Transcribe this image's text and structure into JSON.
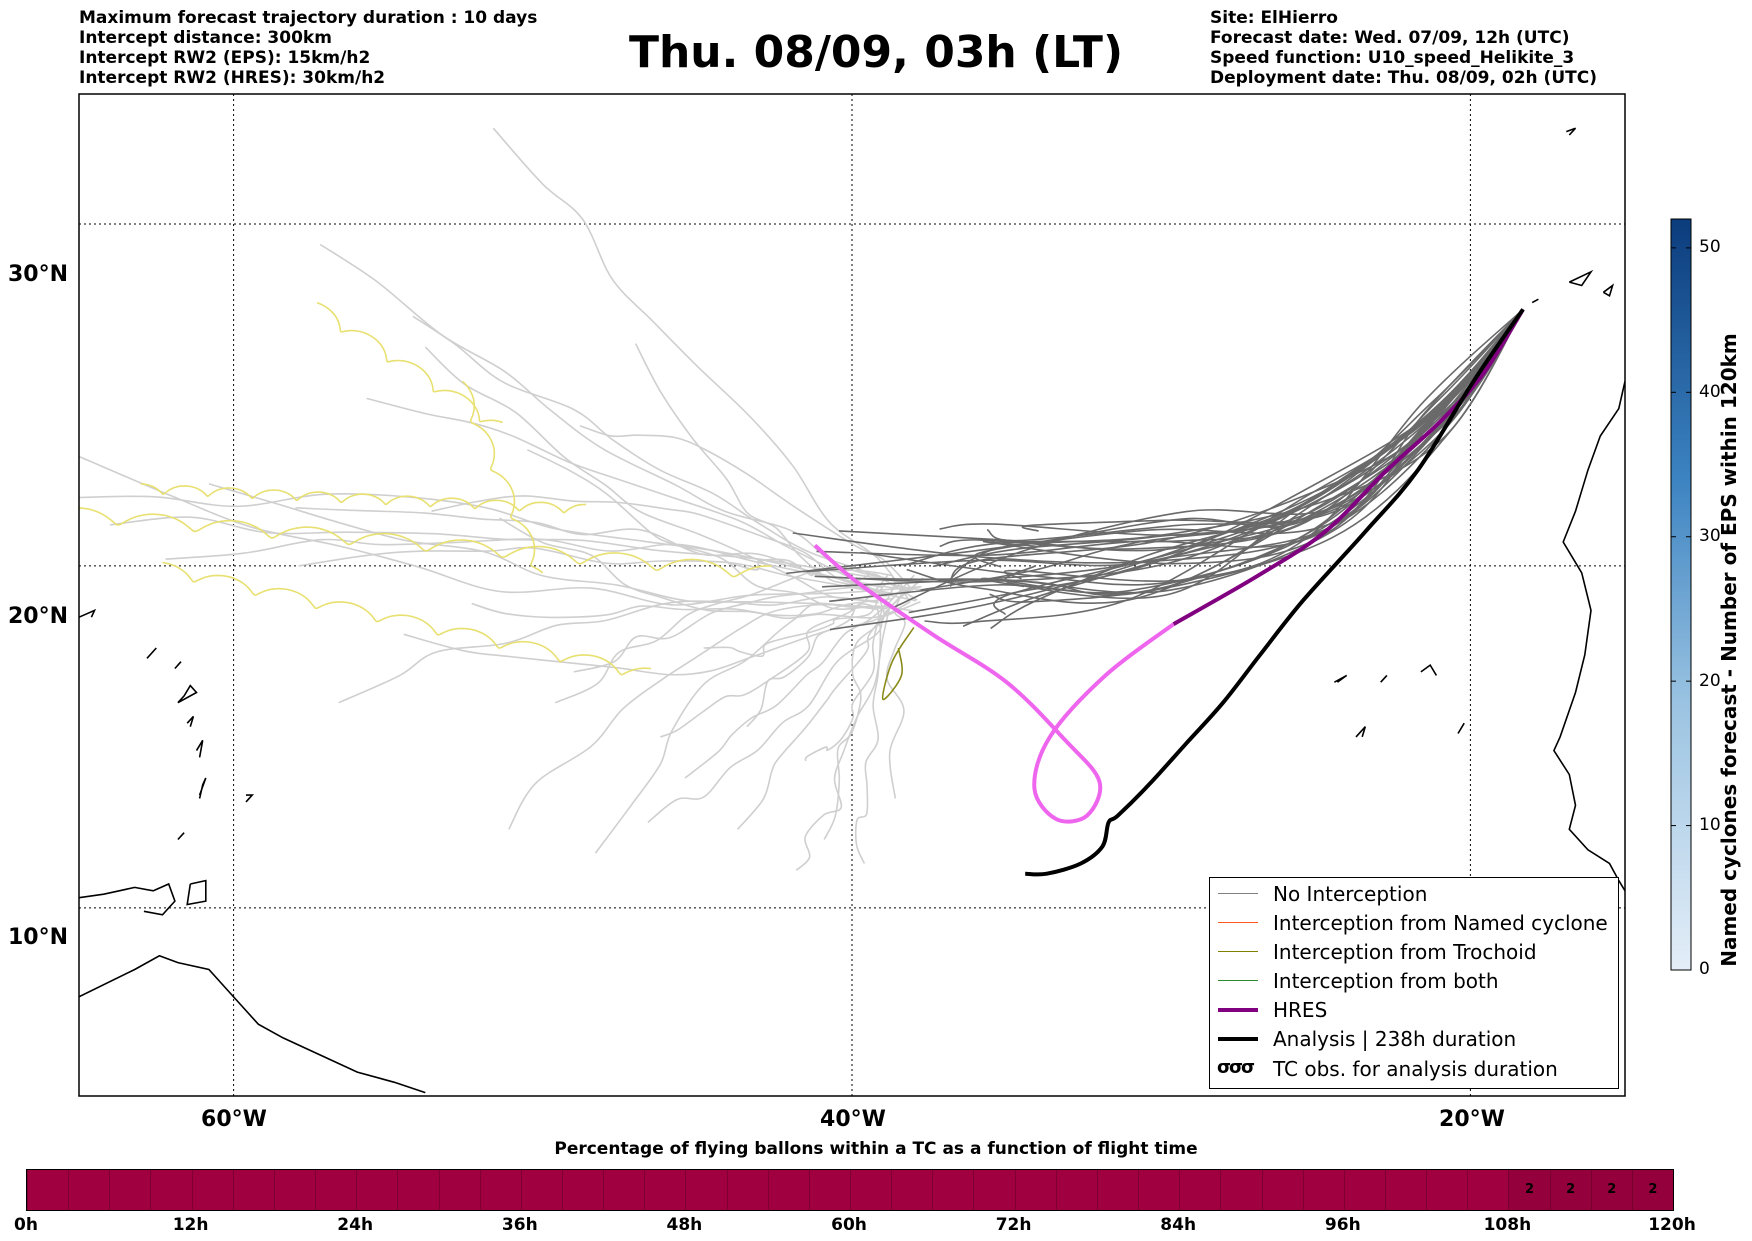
{
  "header_left": [
    "Maximum forecast trajectory duration : 10 days",
    "Intercept distance: 300km",
    "Intercept RW2 (EPS):  15km/h2",
    "Intercept RW2 (HRES): 30km/h2"
  ],
  "title": "Thu. 08/09, 03h (LT)",
  "header_right": [
    "Site: ElHierro",
    "Forecast date: Wed. 07/09, 12h (UTC)",
    "Speed function: U10_speed_Helikite_3",
    "Deployment date: Thu. 08/09, 02h (UTC)"
  ],
  "map": {
    "lat_labels": [
      "30°N",
      "20°N",
      "10°N"
    ],
    "lon_labels": [
      "60°W",
      "40°W",
      "20°W"
    ],
    "lon_range": [
      -65,
      -15
    ],
    "lat_range": [
      4.5,
      33.8
    ],
    "grid_lons": [
      -60,
      -40,
      -20
    ],
    "grid_lats": [
      30,
      20,
      10
    ],
    "colors": {
      "eps_gray": "#cfcfcf",
      "eps_dark": "#6a6a6a",
      "trochoid_yellow": "#e8e070",
      "trochoid_olive": "#8a8a1a",
      "hres": "#800080",
      "hres_light": "#ee66ee",
      "analysis": "#000000",
      "coast": "#000000"
    }
  },
  "legend": {
    "items": [
      {
        "label": "No Interception",
        "color": "#808080",
        "width": 1.5
      },
      {
        "label": "Interception from Named cyclone",
        "color": "#ff5a1f",
        "width": 1.5
      },
      {
        "label": "Interception from Trochoid",
        "color": "#808000",
        "width": 1.5
      },
      {
        "label": "Interception from both",
        "color": "#2a8a2a",
        "width": 1.5
      },
      {
        "label": "HRES",
        "color": "#800080",
        "width": 4
      },
      {
        "label": "Analysis | 238h duration",
        "color": "#000000",
        "width": 4
      },
      {
        "label": "TC obs. for analysis duration",
        "glyph": "σσσ"
      }
    ]
  },
  "colorbar": {
    "label": "Named cyclones forecast - Number of EPS within 120km",
    "ticks": [
      "50",
      "40",
      "30",
      "20",
      "10",
      "0"
    ],
    "range": [
      0,
      52
    ],
    "color_low": "#e4eef8",
    "color_high": "#0b3c7c"
  },
  "strip": {
    "title": "Percentage of flying ballons within a TC as a function of flight time",
    "ticks": [
      "0h",
      "12h",
      "24h",
      "36h",
      "48h",
      "60h",
      "72h",
      "84h",
      "96h",
      "108h",
      "120h"
    ],
    "cell_hours": 3,
    "total_hours": 120,
    "base_color": "#a00040",
    "values_from_hour": 108,
    "values": [
      "2",
      "2",
      "2",
      "2"
    ]
  }
}
